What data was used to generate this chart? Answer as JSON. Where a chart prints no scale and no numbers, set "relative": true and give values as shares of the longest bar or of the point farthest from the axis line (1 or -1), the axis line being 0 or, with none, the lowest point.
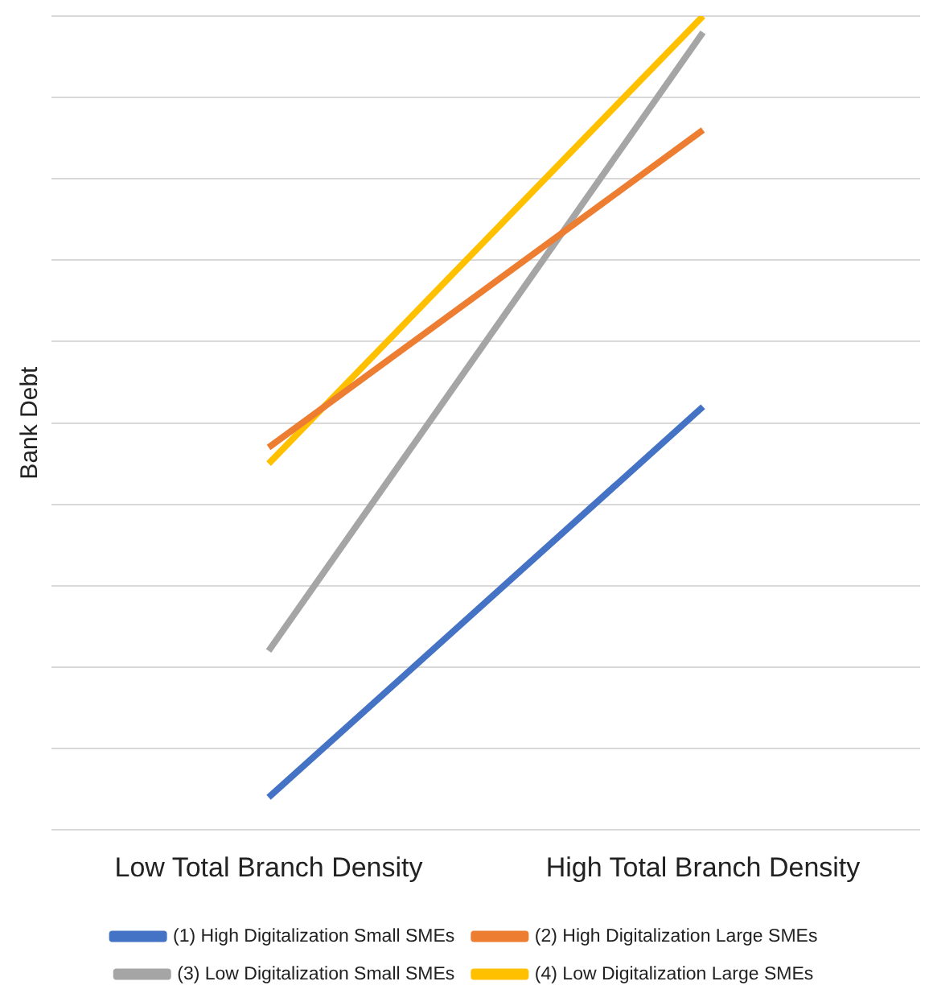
{
  "chart_data": {
    "type": "line",
    "ylabel": "Bank Debt",
    "categories": [
      "Low Total Branch Density",
      "High Total Branch Density"
    ],
    "relative": true,
    "grid": "y",
    "legend": "bottom",
    "marker": "none",
    "line_style": "solid",
    "series": [
      {
        "name": "(1) High Digitalization Small SMEs",
        "color": "#4472c4",
        "values": [
          0.04,
          0.52
        ]
      },
      {
        "name": "(2) High Digitalization Large SMEs",
        "color": "#ed7d31",
        "values": [
          0.47,
          0.86
        ]
      },
      {
        "name": "(3) Low Digitalization Small SMEs",
        "color": "#a5a5a5",
        "values": [
          0.22,
          0.98
        ]
      },
      {
        "name": "(4) Low Digitalization Large SMEs",
        "color": "#ffc000",
        "values": [
          0.45,
          1
        ]
      }
    ]
  }
}
